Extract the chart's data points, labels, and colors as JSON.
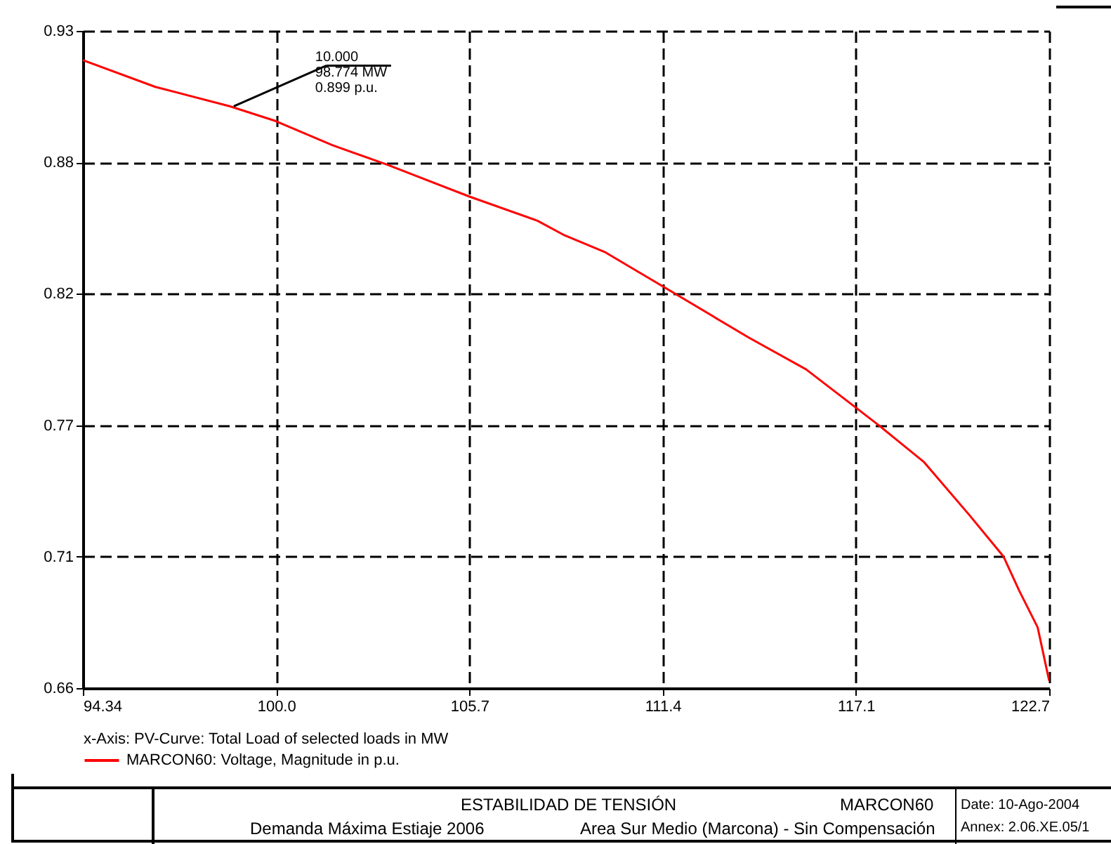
{
  "chart_data": {
    "type": "line",
    "title": "ESTABILIDAD DE TENSIÓN",
    "subtitle": "Demanda Máxima Estiaje 2006",
    "xlabel": "x-Axis:   PV-Curve: Total Load of selected loads in MW",
    "x": [
      94.34,
      96.47,
      98.67,
      100.0,
      101.68,
      103.29,
      105.69,
      107.7,
      108.5,
      109.7,
      111.39,
      113.91,
      115.59,
      117.08,
      117.73,
      119.05,
      120.4,
      121.4,
      121.86,
      122.4,
      122.74
    ],
    "series": [
      {
        "name": "MARCON60: Voltage, Magnitude in p.u.",
        "color": "#ff0000",
        "values": [
          0.918,
          0.907,
          0.899,
          0.893,
          0.883,
          0.875,
          0.862,
          0.852,
          0.846,
          0.839,
          0.825,
          0.804,
          0.791,
          0.775,
          0.768,
          0.753,
          0.731,
          0.714,
          0.7,
          0.685,
          0.663
        ]
      }
    ],
    "xlim": [
      94.34,
      122.74
    ],
    "xticks": [
      {
        "value": 94.34,
        "label": "94.34"
      },
      {
        "value": 100.02,
        "label": "100.0"
      },
      {
        "value": 105.7,
        "label": "105.7"
      },
      {
        "value": 111.38,
        "label": "111.4"
      },
      {
        "value": 117.06,
        "label": "117.1"
      },
      {
        "value": 122.74,
        "label": "122.7"
      }
    ],
    "ylim": [
      0.66,
      0.93
    ],
    "yticks": [
      {
        "value": 0.66,
        "label": "0.66"
      },
      {
        "value": 0.714,
        "label": "0.71"
      },
      {
        "value": 0.768,
        "label": "0.77"
      },
      {
        "value": 0.822,
        "label": "0.82"
      },
      {
        "value": 0.876,
        "label": "0.88"
      },
      {
        "value": 0.93,
        "label": "0.93"
      }
    ],
    "grid": true,
    "legend": "bottom",
    "marker": "none",
    "line_style": "solid",
    "annotations": [
      {
        "text": "10.000\n98.774 MW\n0.899 p.u.",
        "x": 98.774,
        "y": 0.899
      },
      "MARCON60",
      "Area Sur Medio (Marcona) - Sin Compensación",
      "Date:  10-Ago-2004",
      "Annex: 2.06.XE.05/1"
    ]
  }
}
